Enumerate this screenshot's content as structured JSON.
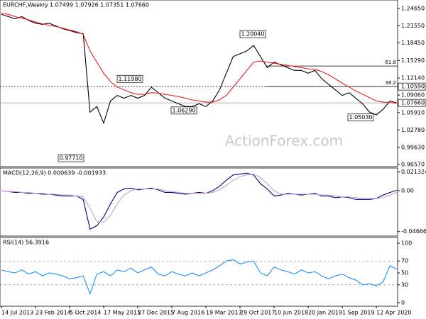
{
  "chart_data": [
    {
      "type": "line",
      "title": "EURCHF,Weekly",
      "subtitle": "1.07499 1.07926 1.07351 1.07660",
      "watermark": "ActionForex.com",
      "categories": [
        "14 Jul 2013",
        null,
        null,
        null,
        null,
        "23 Feb 2014",
        null,
        null,
        null,
        null,
        "5 Oct 2014",
        null,
        null,
        null,
        null,
        "17 May 2015",
        null,
        null,
        null,
        null,
        "27 Dec 2015",
        null,
        null,
        null,
        null,
        "7 Aug 2016",
        null,
        null,
        null,
        null,
        "19 Mar 2017",
        null,
        null,
        null,
        null,
        "29 Oct 2017",
        null,
        null,
        null,
        null,
        "10 Jun 2018",
        null,
        null,
        null,
        null,
        "20 Jan 2019",
        null,
        null,
        null,
        null,
        "1 Sep 2019",
        null,
        null,
        null,
        null,
        "12 Apr 2020",
        null,
        null,
        null
      ],
      "series": [
        {
          "color": "#000000",
          "values": [
            1.236,
            1.232,
            1.228,
            1.232,
            1.225,
            1.22,
            1.218,
            1.22,
            1.215,
            1.21,
            1.207,
            1.203,
            1.201,
            1.06,
            1.07,
            1.04,
            1.08,
            1.09,
            1.085,
            1.09,
            1.085,
            1.09,
            1.105,
            1.095,
            1.085,
            1.08,
            1.075,
            1.07,
            1.07,
            1.075,
            1.07,
            1.08,
            1.1,
            1.13,
            1.16,
            1.165,
            1.17,
            1.18,
            1.16,
            1.14,
            1.15,
            1.145,
            1.14,
            1.135,
            1.135,
            1.13,
            1.135,
            1.12,
            1.11,
            1.1,
            1.09,
            1.095,
            1.085,
            1.075,
            1.06,
            1.055,
            1.065,
            1.08,
            1.0766
          ]
        },
        {
          "color": "#e8231f",
          "values": [
            1.238,
            1.236,
            1.232,
            1.229,
            1.226,
            1.222,
            1.219,
            1.216,
            1.214,
            1.211,
            1.208,
            1.205,
            1.2,
            1.17,
            1.15,
            1.13,
            1.115,
            1.105,
            1.1,
            1.095,
            1.092,
            1.092,
            1.095,
            1.094,
            1.092,
            1.09,
            1.088,
            1.085,
            1.082,
            1.08,
            1.078,
            1.078,
            1.082,
            1.09,
            1.105,
            1.12,
            1.135,
            1.15,
            1.152,
            1.15,
            1.148,
            1.146,
            1.144,
            1.142,
            1.14,
            1.138,
            1.137,
            1.133,
            1.127,
            1.12,
            1.112,
            1.105,
            1.098,
            1.092,
            1.086,
            1.08,
            1.078,
            1.077,
            1.076
          ]
        }
      ],
      "ylim": [
        0.9619,
        1.2618
      ],
      "yticks": [
        {
          "value": 1.2465,
          "label": "1.24650"
        },
        {
          "value": 1.2155,
          "label": "1.21550"
        },
        {
          "value": 1.1845,
          "label": "1.18450"
        },
        {
          "value": 1.1529,
          "label": "1.15290"
        },
        {
          "value": 1.1214,
          "label": "1.12140"
        },
        {
          "value": 1.0906,
          "label": "1.09060"
        },
        {
          "value": 1.0591,
          "label": "1.05910"
        },
        {
          "value": 1.0278,
          "label": "1.02780"
        },
        {
          "value": 0.9963,
          "label": "0.99630"
        },
        {
          "value": 0.9657,
          "label": "0.96570"
        }
      ],
      "annotations": [
        {
          "label": "1.20040",
          "value": 1.2004
        },
        {
          "label": "1.11980",
          "value": 1.1198
        },
        {
          "label": "1.06290",
          "value": 1.0629
        },
        {
          "label": "0.97710",
          "value": 0.9771
        },
        {
          "label": "1.05030",
          "value": 1.0503
        }
      ],
      "levels": [
        {
          "label": "1.10590",
          "value": 1.1059
        },
        {
          "label": "1.07660",
          "value": 1.0766
        }
      ],
      "fib": [
        {
          "label": "61.8",
          "value": 1.143
        },
        {
          "label": "38.2",
          "value": 1.1059
        }
      ]
    },
    {
      "type": "line",
      "title": "MACD(12,26,9) 0.000639 -0.001933",
      "series": [
        {
          "color": "#00008b",
          "values": [
            0.0,
            -0.001,
            -0.002,
            -0.002,
            -0.003,
            -0.003,
            -0.004,
            -0.004,
            -0.005,
            -0.006,
            -0.006,
            -0.006,
            -0.01,
            -0.044,
            -0.04,
            -0.03,
            -0.015,
            -0.002,
            0.002,
            0.003,
            0.001,
            0.002,
            0.003,
            0.001,
            -0.002,
            -0.002,
            -0.003,
            -0.004,
            -0.003,
            -0.002,
            -0.003,
            0.0,
            0.005,
            0.012,
            0.018,
            0.019,
            0.02,
            0.018,
            0.008,
            0.002,
            -0.006,
            -0.005,
            -0.003,
            -0.004,
            -0.005,
            -0.004,
            -0.003,
            -0.006,
            -0.006,
            -0.008,
            -0.007,
            -0.008,
            -0.01,
            -0.01,
            -0.01,
            -0.009,
            -0.005,
            -0.002,
            0.000639
          ]
        },
        {
          "color": "#c8a0c8",
          "values": [
            0.0,
            -0.001,
            -0.001,
            -0.002,
            -0.002,
            -0.003,
            -0.003,
            -0.004,
            -0.004,
            -0.005,
            -0.005,
            -0.006,
            -0.007,
            -0.02,
            -0.035,
            -0.036,
            -0.028,
            -0.015,
            -0.005,
            0.0,
            0.002,
            0.002,
            0.002,
            0.002,
            0.0,
            -0.001,
            -0.002,
            -0.003,
            -0.003,
            -0.003,
            -0.003,
            -0.002,
            0.001,
            0.006,
            0.012,
            0.016,
            0.018,
            0.019,
            0.015,
            0.008,
            0.0,
            -0.004,
            -0.004,
            -0.004,
            -0.004,
            -0.004,
            -0.004,
            -0.005,
            -0.005,
            -0.006,
            -0.007,
            -0.007,
            -0.008,
            -0.009,
            -0.009,
            -0.009,
            -0.008,
            -0.005,
            -0.001933
          ]
        }
      ],
      "ylim": [
        -0.0518,
        0.0259
      ],
      "yticks": [
        0.021324,
        {
          "value": 0,
          "label": "0.00"
        },
        -0.046663
      ]
    },
    {
      "type": "line",
      "title": "RSI(14) 56.3916",
      "series": [
        {
          "color": "#1e90ff",
          "values": [
            55,
            52,
            50,
            55,
            48,
            52,
            45,
            50,
            48,
            45,
            40,
            42,
            45,
            15,
            48,
            52,
            45,
            55,
            52,
            58,
            50,
            55,
            60,
            48,
            45,
            52,
            48,
            45,
            50,
            45,
            50,
            55,
            62,
            70,
            72,
            65,
            68,
            70,
            50,
            45,
            60,
            55,
            52,
            48,
            55,
            50,
            52,
            45,
            40,
            45,
            48,
            42,
            38,
            30,
            32,
            28,
            35,
            62,
            56.3916
          ]
        }
      ],
      "ylim": [
        -6,
        109.5
      ],
      "yticks": [
        100,
        70,
        50,
        30,
        0
      ],
      "grid": [
        70,
        30
      ]
    }
  ]
}
